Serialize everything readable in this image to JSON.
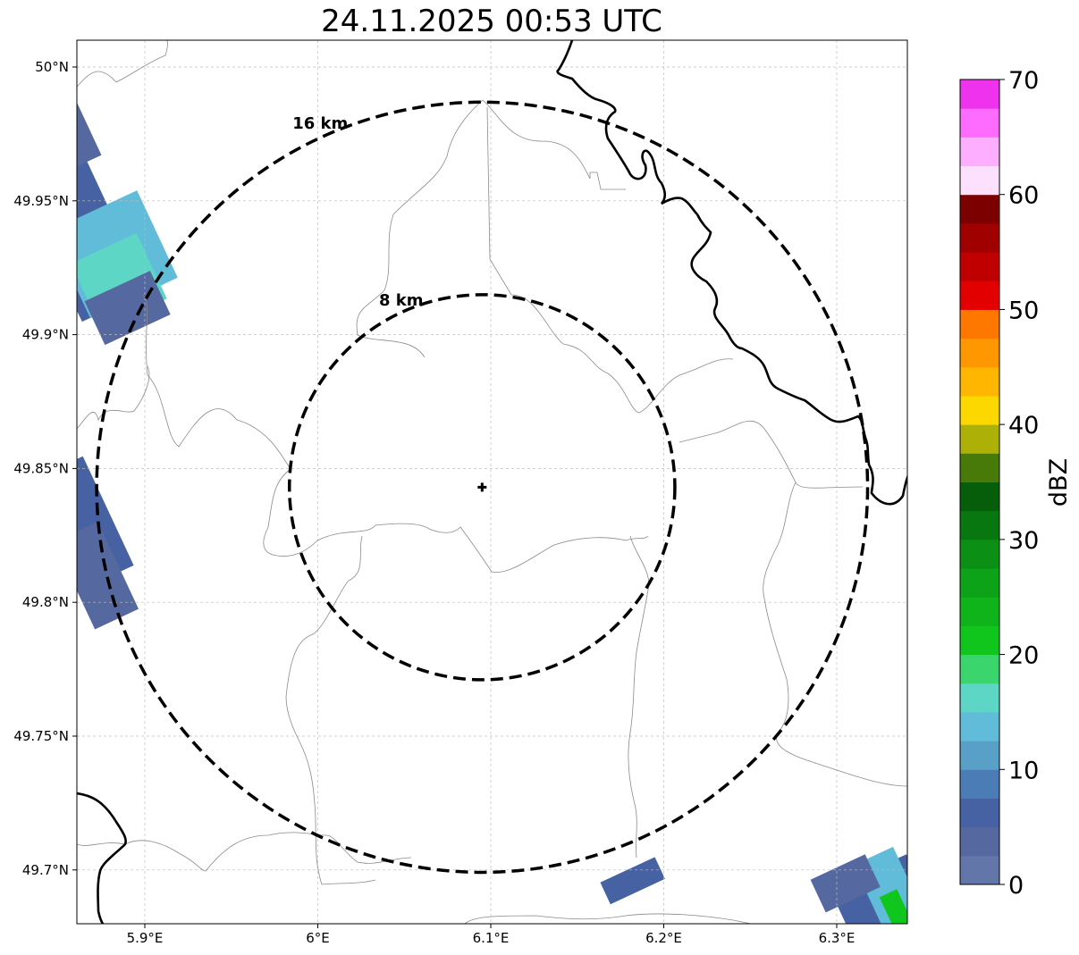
{
  "title": "24.11.2025 00:53 UTC",
  "map": {
    "lon_range": [
      5.86,
      6.34
    ],
    "lat_range": [
      49.68,
      50.01
    ],
    "lon_ticks": [
      {
        "value": 5.9,
        "label": "5.9°E"
      },
      {
        "value": 6.0,
        "label": "6°E"
      },
      {
        "value": 6.1,
        "label": "6.1°E"
      },
      {
        "value": 6.2,
        "label": "6.2°E"
      },
      {
        "value": 6.3,
        "label": "6.3°E"
      }
    ],
    "lat_ticks": [
      {
        "value": 50.0,
        "label": "50°N"
      },
      {
        "value": 49.95,
        "label": "49.95°N"
      },
      {
        "value": 49.9,
        "label": "49.9°N"
      },
      {
        "value": 49.85,
        "label": "49.85°N"
      },
      {
        "value": 49.8,
        "label": "49.8°N"
      },
      {
        "value": 49.75,
        "label": "49.75°N"
      },
      {
        "value": 49.7,
        "label": "49.7°N"
      }
    ],
    "grid": true,
    "radar_site": {
      "lon": 6.095,
      "lat": 49.843
    },
    "range_rings": [
      {
        "radius_km": 8,
        "label": "8 km"
      },
      {
        "radius_km": 16,
        "label": "16 km"
      }
    ]
  },
  "colorbar": {
    "label": "dBZ",
    "min": 0,
    "max": 70,
    "tick_labels": [
      "0",
      "10",
      "20",
      "30",
      "40",
      "50",
      "60",
      "70"
    ],
    "colors": [
      "#6276a9",
      "#55689f",
      "#4762a3",
      "#4c7cb5",
      "#58a0c8",
      "#61bcda",
      "#5ed6c6",
      "#3bd56d",
      "#10c61d",
      "#0fb41b",
      "#0ca318",
      "#0b8f14",
      "#09770f",
      "#075e0a",
      "#477a08",
      "#adb006",
      "#fdd700",
      "#feb600",
      "#fe9700",
      "#fe7800",
      "#e30000",
      "#c00000",
      "#a00000",
      "#7d0000",
      "#fde0fe",
      "#fdaefe",
      "#fd6cfe",
      "#ee32ee"
    ]
  },
  "echo_patches": [
    {
      "lon": 5.865,
      "lat": 49.935,
      "w_km": 3.0,
      "h_km": 6.0,
      "dbz": 6
    },
    {
      "lon": 5.882,
      "lat": 49.93,
      "w_km": 4.0,
      "h_km": 4.0,
      "dbz": 14
    },
    {
      "lon": 5.885,
      "lat": 49.92,
      "w_km": 3.0,
      "h_km": 3.0,
      "dbz": 17
    },
    {
      "lon": 5.89,
      "lat": 49.91,
      "w_km": 3.0,
      "h_km": 2.0,
      "dbz": 4
    },
    {
      "lon": 5.86,
      "lat": 49.975,
      "w_km": 1.2,
      "h_km": 2.5,
      "dbz": 3
    },
    {
      "lon": 5.865,
      "lat": 49.83,
      "w_km": 2.2,
      "h_km": 5.0,
      "dbz": 5
    },
    {
      "lon": 5.872,
      "lat": 49.81,
      "w_km": 2.0,
      "h_km": 4.0,
      "dbz": 4
    },
    {
      "lon": 6.327,
      "lat": 49.687,
      "w_km": 3.5,
      "h_km": 3.0,
      "dbz": 5
    },
    {
      "lon": 6.33,
      "lat": 49.693,
      "w_km": 1.8,
      "h_km": 3.0,
      "dbz": 14
    },
    {
      "lon": 6.335,
      "lat": 49.684,
      "w_km": 0.8,
      "h_km": 1.8,
      "dbz": 22
    },
    {
      "lon": 6.305,
      "lat": 49.695,
      "w_km": 2.5,
      "h_km": 1.5,
      "dbz": 3
    },
    {
      "lon": 6.182,
      "lat": 49.696,
      "w_km": 2.5,
      "h_km": 1.0,
      "dbz": 6
    }
  ]
}
